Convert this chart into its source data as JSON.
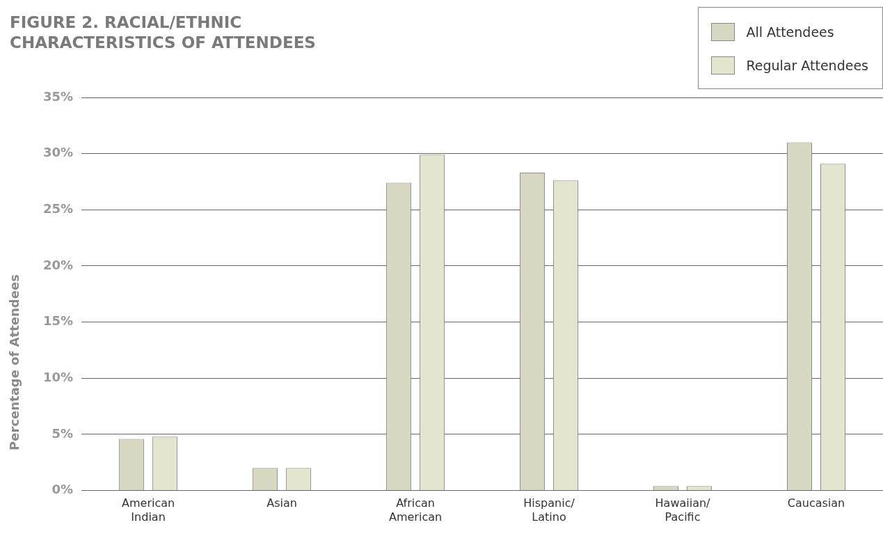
{
  "chart_data": {
    "type": "bar",
    "title": "FIGURE 2. RACIAL/ETHNIC CHARACTERISTICS OF ATTENDEES",
    "ylabel": "Percentage of Attendees",
    "categories": [
      "American Indian",
      "Asian",
      "African American",
      "Hispanic/ Latino",
      "Hawaiian/ Pacific",
      "Caucasian"
    ],
    "series": [
      {
        "name": "All Attendees",
        "color": "#d8d8c2",
        "values": [
          4.6,
          2.0,
          27.4,
          28.3,
          0.4,
          31.0
        ]
      },
      {
        "name": "Regular Attendees",
        "color": "#e4e4cf",
        "values": [
          4.8,
          2.0,
          29.9,
          27.6,
          0.4,
          29.1
        ]
      }
    ],
    "ylim": [
      0,
      35
    ],
    "yticks": [
      {
        "value": 0,
        "label": "0%"
      },
      {
        "value": 5,
        "label": "5%"
      },
      {
        "value": 10,
        "label": "10%"
      },
      {
        "value": 15,
        "label": "15%"
      },
      {
        "value": 20,
        "label": "20%"
      },
      {
        "value": 25,
        "label": "25%"
      },
      {
        "value": 30,
        "label": "30%"
      },
      {
        "value": 35,
        "label": "35%"
      }
    ],
    "grid": "y",
    "legend": "top right"
  }
}
